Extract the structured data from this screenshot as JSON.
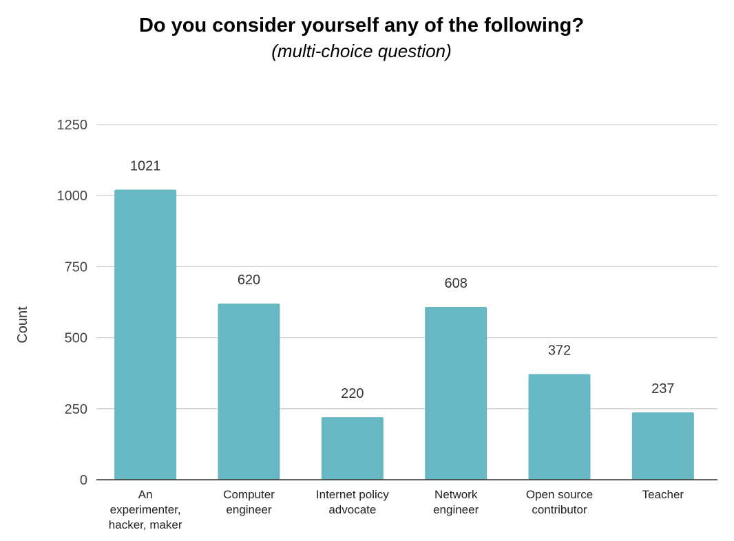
{
  "chart_data": {
    "type": "bar",
    "title": "Do you consider yourself any of the following?",
    "subtitle": "(multi-choice question)",
    "xlabel": "",
    "ylabel": "Count",
    "ylim": [
      0,
      1250
    ],
    "yticks": [
      0,
      250,
      500,
      750,
      1000,
      1250
    ],
    "grid": true,
    "categories": [
      [
        "An",
        "experimenter,",
        "hacker, maker"
      ],
      [
        "Computer",
        "engineer"
      ],
      [
        "Internet policy",
        "advocate"
      ],
      [
        "Network",
        "engineer"
      ],
      [
        "Open source",
        "contributor"
      ],
      [
        "Teacher"
      ]
    ],
    "values": [
      1021,
      620,
      220,
      608,
      372,
      237
    ],
    "bar_color": "#67b8c3",
    "gridline_color": "#d0d0d0",
    "axis_color": "#333333"
  }
}
